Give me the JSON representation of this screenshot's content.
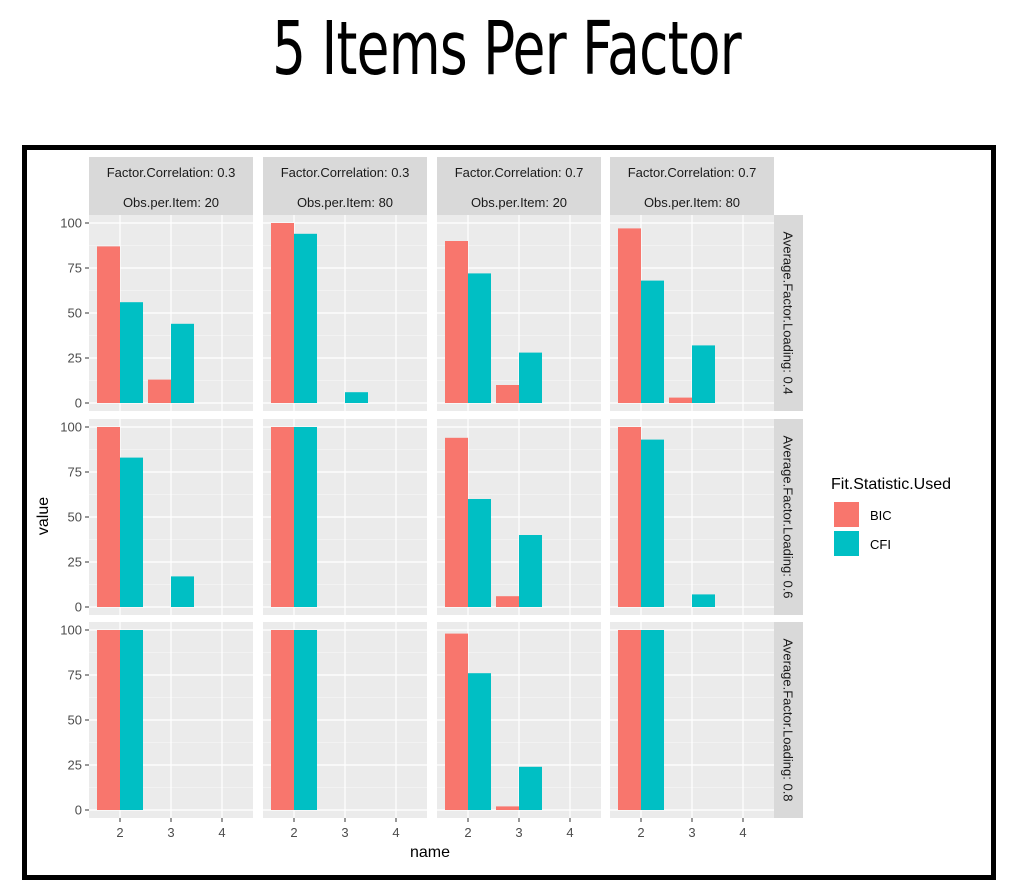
{
  "title": "5 Items Per Factor",
  "chart_data": {
    "type": "bar",
    "title": "5 Items Per Factor",
    "xlabel": "name",
    "ylabel": "value",
    "x_ticks": [
      "2",
      "3",
      "4"
    ],
    "y_ticks": [
      "0",
      "25",
      "50",
      "75",
      "100"
    ],
    "ylim": [
      0,
      100
    ],
    "grid": true,
    "legend": {
      "title": "Fit.Statistic.Used",
      "position": "right",
      "items": [
        {
          "name": "BIC",
          "color": "#F8766D"
        },
        {
          "name": "CFI",
          "color": "#00BFC4"
        }
      ]
    },
    "col_strips": [
      {
        "line1": "Factor.Correlation: 0.3",
        "line2": "Obs.per.Item: 20"
      },
      {
        "line1": "Factor.Correlation: 0.3",
        "line2": "Obs.per.Item: 80"
      },
      {
        "line1": "Factor.Correlation: 0.7",
        "line2": "Obs.per.Item: 20"
      },
      {
        "line1": "Factor.Correlation: 0.7",
        "line2": "Obs.per.Item: 80"
      }
    ],
    "row_strips": [
      "Average.Factor.Loading: 0.4",
      "Average.Factor.Loading: 0.6",
      "Average.Factor.Loading: 0.8"
    ],
    "panels": [
      [
        {
          "BIC": {
            "2": 87,
            "3": 13,
            "4": 0
          },
          "CFI": {
            "2": 56,
            "3": 44,
            "4": 0
          }
        },
        {
          "BIC": {
            "2": 100,
            "3": 0,
            "4": 0
          },
          "CFI": {
            "2": 94,
            "3": 6,
            "4": 0
          }
        },
        {
          "BIC": {
            "2": 90,
            "3": 10,
            "4": 0
          },
          "CFI": {
            "2": 72,
            "3": 28,
            "4": 0
          }
        },
        {
          "BIC": {
            "2": 97,
            "3": 3,
            "4": 0
          },
          "CFI": {
            "2": 68,
            "3": 32,
            "4": 0
          }
        }
      ],
      [
        {
          "BIC": {
            "2": 100,
            "3": 0,
            "4": 0
          },
          "CFI": {
            "2": 83,
            "3": 17,
            "4": 0
          }
        },
        {
          "BIC": {
            "2": 100,
            "3": 0,
            "4": 0
          },
          "CFI": {
            "2": 100,
            "3": 0,
            "4": 0
          }
        },
        {
          "BIC": {
            "2": 94,
            "3": 6,
            "4": 0
          },
          "CFI": {
            "2": 60,
            "3": 40,
            "4": 0
          }
        },
        {
          "BIC": {
            "2": 100,
            "3": 0,
            "4": 0
          },
          "CFI": {
            "2": 93,
            "3": 7,
            "4": 0
          }
        }
      ],
      [
        {
          "BIC": {
            "2": 100,
            "3": 0,
            "4": 0
          },
          "CFI": {
            "2": 100,
            "3": 0,
            "4": 0
          }
        },
        {
          "BIC": {
            "2": 100,
            "3": 0,
            "4": 0
          },
          "CFI": {
            "2": 100,
            "3": 0,
            "4": 0
          }
        },
        {
          "BIC": {
            "2": 98,
            "3": 2,
            "4": 0
          },
          "CFI": {
            "2": 76,
            "3": 24,
            "4": 0
          }
        },
        {
          "BIC": {
            "2": 100,
            "3": 0,
            "4": 0
          },
          "CFI": {
            "2": 100,
            "3": 0,
            "4": 0
          }
        }
      ]
    ]
  }
}
